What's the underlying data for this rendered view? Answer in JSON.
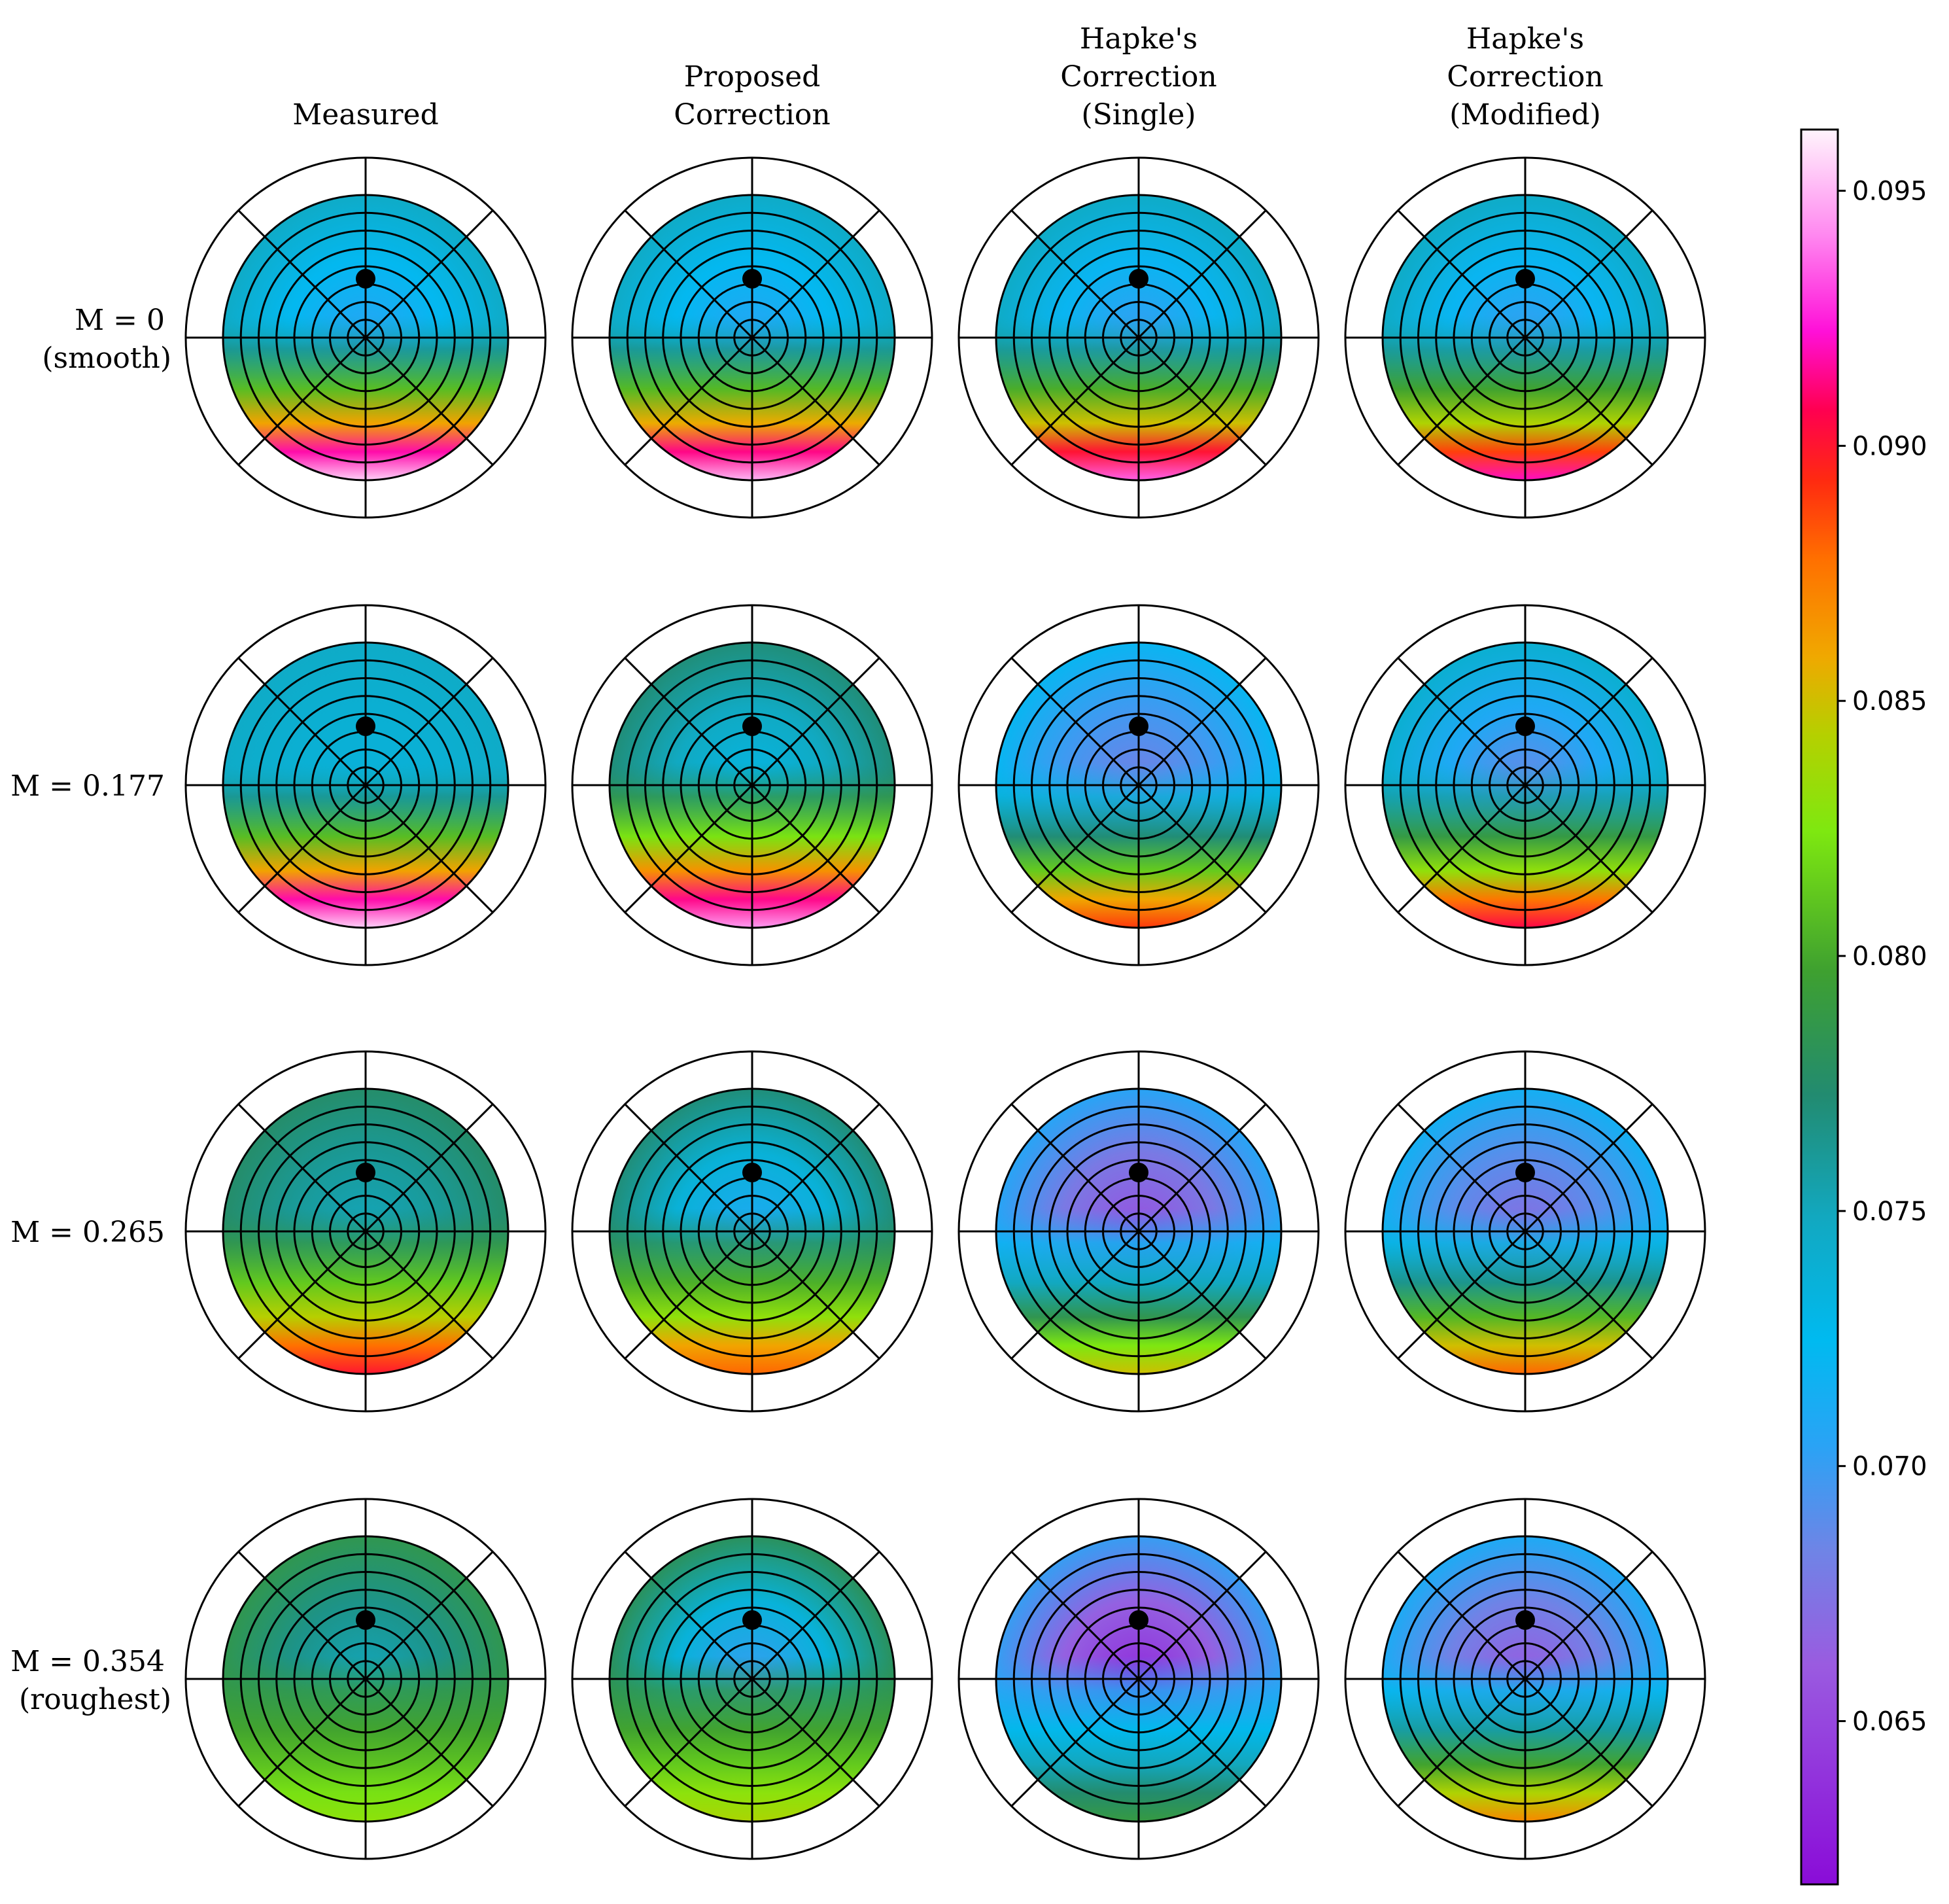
{
  "chart_data": {
    "type": "heatmap",
    "subtype": "polar-brdf-grid",
    "columns": [
      {
        "lines": [
          "Measured"
        ]
      },
      {
        "lines": [
          "Proposed",
          "Correction"
        ]
      },
      {
        "lines": [
          "Hapke's",
          "Correction",
          "(Single)"
        ]
      },
      {
        "lines": [
          "Hapke's",
          "Correction",
          "(Modified)"
        ]
      }
    ],
    "rows": [
      {
        "math": "M = 0",
        "note": "(smooth)",
        "M": 0
      },
      {
        "math": "M = 0.177",
        "note": "",
        "M": 0.177
      },
      {
        "math": "M = 0.265",
        "note": "",
        "M": 0.265
      },
      {
        "math": "M = 0.354",
        "note": "(roughest)",
        "M": 0.354
      }
    ],
    "panels": [
      [
        {
          "center": 0.0705,
          "rim": 0.0745,
          "forward": 0.0955
        },
        {
          "center": 0.0705,
          "rim": 0.0745,
          "forward": 0.095
        },
        {
          "center": 0.07,
          "rim": 0.0745,
          "forward": 0.0935
        },
        {
          "center": 0.07,
          "rim": 0.0745,
          "forward": 0.092
        }
      ],
      [
        {
          "center": 0.0735,
          "rim": 0.0745,
          "forward": 0.0955
        },
        {
          "center": 0.073,
          "rim": 0.077,
          "forward": 0.0945
        },
        {
          "center": 0.068,
          "rim": 0.072,
          "forward": 0.089
        },
        {
          "center": 0.0685,
          "rim": 0.074,
          "forward": 0.0905
        }
      ],
      [
        {
          "center": 0.075,
          "rim": 0.0775,
          "forward": 0.09
        },
        {
          "center": 0.071,
          "rim": 0.077,
          "forward": 0.088
        },
        {
          "center": 0.0655,
          "rim": 0.0705,
          "forward": 0.085
        },
        {
          "center": 0.067,
          "rim": 0.0715,
          "forward": 0.088
        }
      ],
      [
        {
          "center": 0.075,
          "rim": 0.0785,
          "forward": 0.083
        },
        {
          "center": 0.07,
          "rim": 0.078,
          "forward": 0.084
        },
        {
          "center": 0.0635,
          "rim": 0.07,
          "forward": 0.079
        },
        {
          "center": 0.066,
          "rim": 0.071,
          "forward": 0.087
        }
      ]
    ],
    "colorbar": {
      "min": 0.0618,
      "max": 0.0962,
      "ticks": [
        0.065,
        0.07,
        0.075,
        0.08,
        0.085,
        0.09,
        0.095
      ],
      "tick_labels": [
        "0.065",
        "0.070",
        "0.075",
        "0.080",
        "0.085",
        "0.090",
        "0.095"
      ],
      "colormap": [
        {
          "v": 0.0,
          "c": "#8a0cd8"
        },
        {
          "v": 0.125,
          "c": "#9a5be0"
        },
        {
          "v": 0.19,
          "c": "#6f84e6"
        },
        {
          "v": 0.25,
          "c": "#2aa3f5"
        },
        {
          "v": 0.31,
          "c": "#00baf0"
        },
        {
          "v": 0.38,
          "c": "#12a8c0"
        },
        {
          "v": 0.45,
          "c": "#228b70"
        },
        {
          "v": 0.52,
          "c": "#3ea030"
        },
        {
          "v": 0.6,
          "c": "#7ee810"
        },
        {
          "v": 0.655,
          "c": "#b5d000"
        },
        {
          "v": 0.7,
          "c": "#f0a800"
        },
        {
          "v": 0.755,
          "c": "#ff7000"
        },
        {
          "v": 0.8,
          "c": "#ff2a10"
        },
        {
          "v": 0.84,
          "c": "#ff0050"
        },
        {
          "v": 0.885,
          "c": "#ff10d8"
        },
        {
          "v": 0.94,
          "c": "#ff88f0"
        },
        {
          "v": 1.0,
          "c": "#fff4fc"
        }
      ]
    },
    "polar_grid": {
      "rings": 8,
      "spokes_deg": [
        0,
        45,
        90,
        135,
        180,
        225,
        270,
        315
      ],
      "marker": "black dot above center"
    }
  }
}
